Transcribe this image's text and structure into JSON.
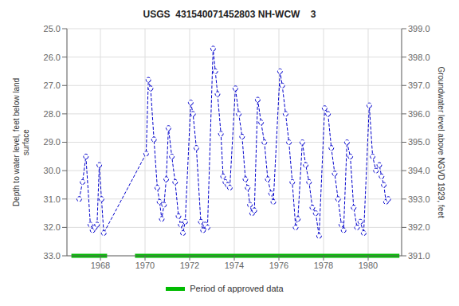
{
  "chart_data": {
    "type": "line",
    "title": "USGS  431540071452803 NH-WCW    3",
    "ylabel": "Depth to water level, feet below land\nsurface",
    "y2label": "Groundwater level above NGVD 1929, feet",
    "xlim": [
      1966.5,
      1981.5
    ],
    "xticks": [
      1968,
      1970,
      1972,
      1974,
      1976,
      1978,
      1980
    ],
    "ylim": [
      33.0,
      25.0
    ],
    "yticks": [
      {
        "value": 25.0,
        "label": "25.0"
      },
      {
        "value": 26.0,
        "label": "26.0"
      },
      {
        "value": 27.0,
        "label": "27.0"
      },
      {
        "value": 28.0,
        "label": "28.0"
      },
      {
        "value": 29.0,
        "label": "29.0"
      },
      {
        "value": 30.0,
        "label": "30.0"
      },
      {
        "value": 31.0,
        "label": "31.0"
      },
      {
        "value": 32.0,
        "label": "32.0"
      },
      {
        "value": 33.0,
        "label": "33.0"
      }
    ],
    "y2lim": [
      391.0,
      399.0
    ],
    "y2ticks": [
      {
        "value": 391.0,
        "label": "391.0"
      },
      {
        "value": 392.0,
        "label": "392.0"
      },
      {
        "value": 393.0,
        "label": "393.0"
      },
      {
        "value": 394.0,
        "label": "394.0"
      },
      {
        "value": 395.0,
        "label": "395.0"
      },
      {
        "value": 396.0,
        "label": "396.0"
      },
      {
        "value": 397.0,
        "label": "397.0"
      },
      {
        "value": 398.0,
        "label": "398.0"
      },
      {
        "value": 399.0,
        "label": "399.0"
      }
    ],
    "grid": true,
    "legend": "bottom",
    "x": [
      1967.05,
      1967.2,
      1967.35,
      1967.55,
      1967.65,
      1967.75,
      1967.85,
      1967.95,
      1968.05,
      1968.15,
      1970.05,
      1970.15,
      1970.25,
      1970.4,
      1970.55,
      1970.65,
      1970.75,
      1970.85,
      1970.95,
      1971.05,
      1971.2,
      1971.35,
      1971.5,
      1971.6,
      1971.7,
      1971.8,
      1972.05,
      1972.15,
      1972.3,
      1972.5,
      1972.6,
      1972.7,
      1972.8,
      1973.05,
      1973.15,
      1973.25,
      1973.4,
      1973.5,
      1973.6,
      1973.7,
      1973.8,
      1974.05,
      1974.2,
      1974.35,
      1974.5,
      1974.6,
      1974.7,
      1974.8,
      1974.9,
      1975.05,
      1975.2,
      1975.35,
      1975.5,
      1975.65,
      1975.75,
      1976.05,
      1976.15,
      1976.3,
      1976.45,
      1976.6,
      1976.75,
      1976.85,
      1977.05,
      1977.2,
      1977.35,
      1977.5,
      1977.65,
      1977.8,
      1978.05,
      1978.2,
      1978.35,
      1978.5,
      1978.65,
      1978.8,
      1978.9,
      1979.05,
      1979.2,
      1979.35,
      1979.5,
      1979.65,
      1979.8,
      1980.05,
      1980.2,
      1980.35,
      1980.5,
      1980.6,
      1980.7,
      1980.8,
      1980.9
    ],
    "series": [
      {
        "color": "#0000cc",
        "marker": "o",
        "line_style": "dashed",
        "values": [
          31.0,
          30.4,
          29.5,
          31.9,
          32.1,
          32.0,
          31.9,
          29.8,
          31.0,
          32.2,
          29.4,
          26.8,
          27.1,
          28.9,
          30.6,
          31.1,
          31.7,
          31.2,
          30.3,
          28.5,
          29.5,
          30.4,
          31.6,
          31.9,
          32.2,
          31.8,
          27.6,
          28.0,
          29.2,
          31.8,
          32.1,
          31.9,
          32.0,
          25.7,
          26.5,
          27.3,
          28.7,
          30.2,
          30.4,
          30.5,
          30.6,
          27.1,
          28.0,
          28.8,
          30.3,
          30.6,
          31.2,
          31.5,
          31.4,
          27.5,
          28.3,
          29.0,
          30.3,
          30.8,
          31.1,
          26.5,
          27.0,
          28.0,
          29.0,
          30.4,
          32.0,
          31.7,
          29.0,
          29.8,
          30.4,
          31.3,
          31.5,
          32.3,
          27.8,
          28.0,
          29.2,
          30.1,
          31.0,
          31.9,
          32.1,
          29.0,
          29.5,
          31.3,
          32.0,
          31.8,
          32.2,
          27.7,
          29.5,
          30.0,
          29.8,
          30.2,
          30.5,
          31.1,
          31.0
        ]
      },
      {
        "name": "Period of approved data",
        "type": "segments",
        "color": "#00bb00",
        "y": 33.0,
        "segments": [
          [
            1966.7,
            1968.3
          ],
          [
            1969.55,
            1981.4
          ]
        ]
      }
    ]
  }
}
